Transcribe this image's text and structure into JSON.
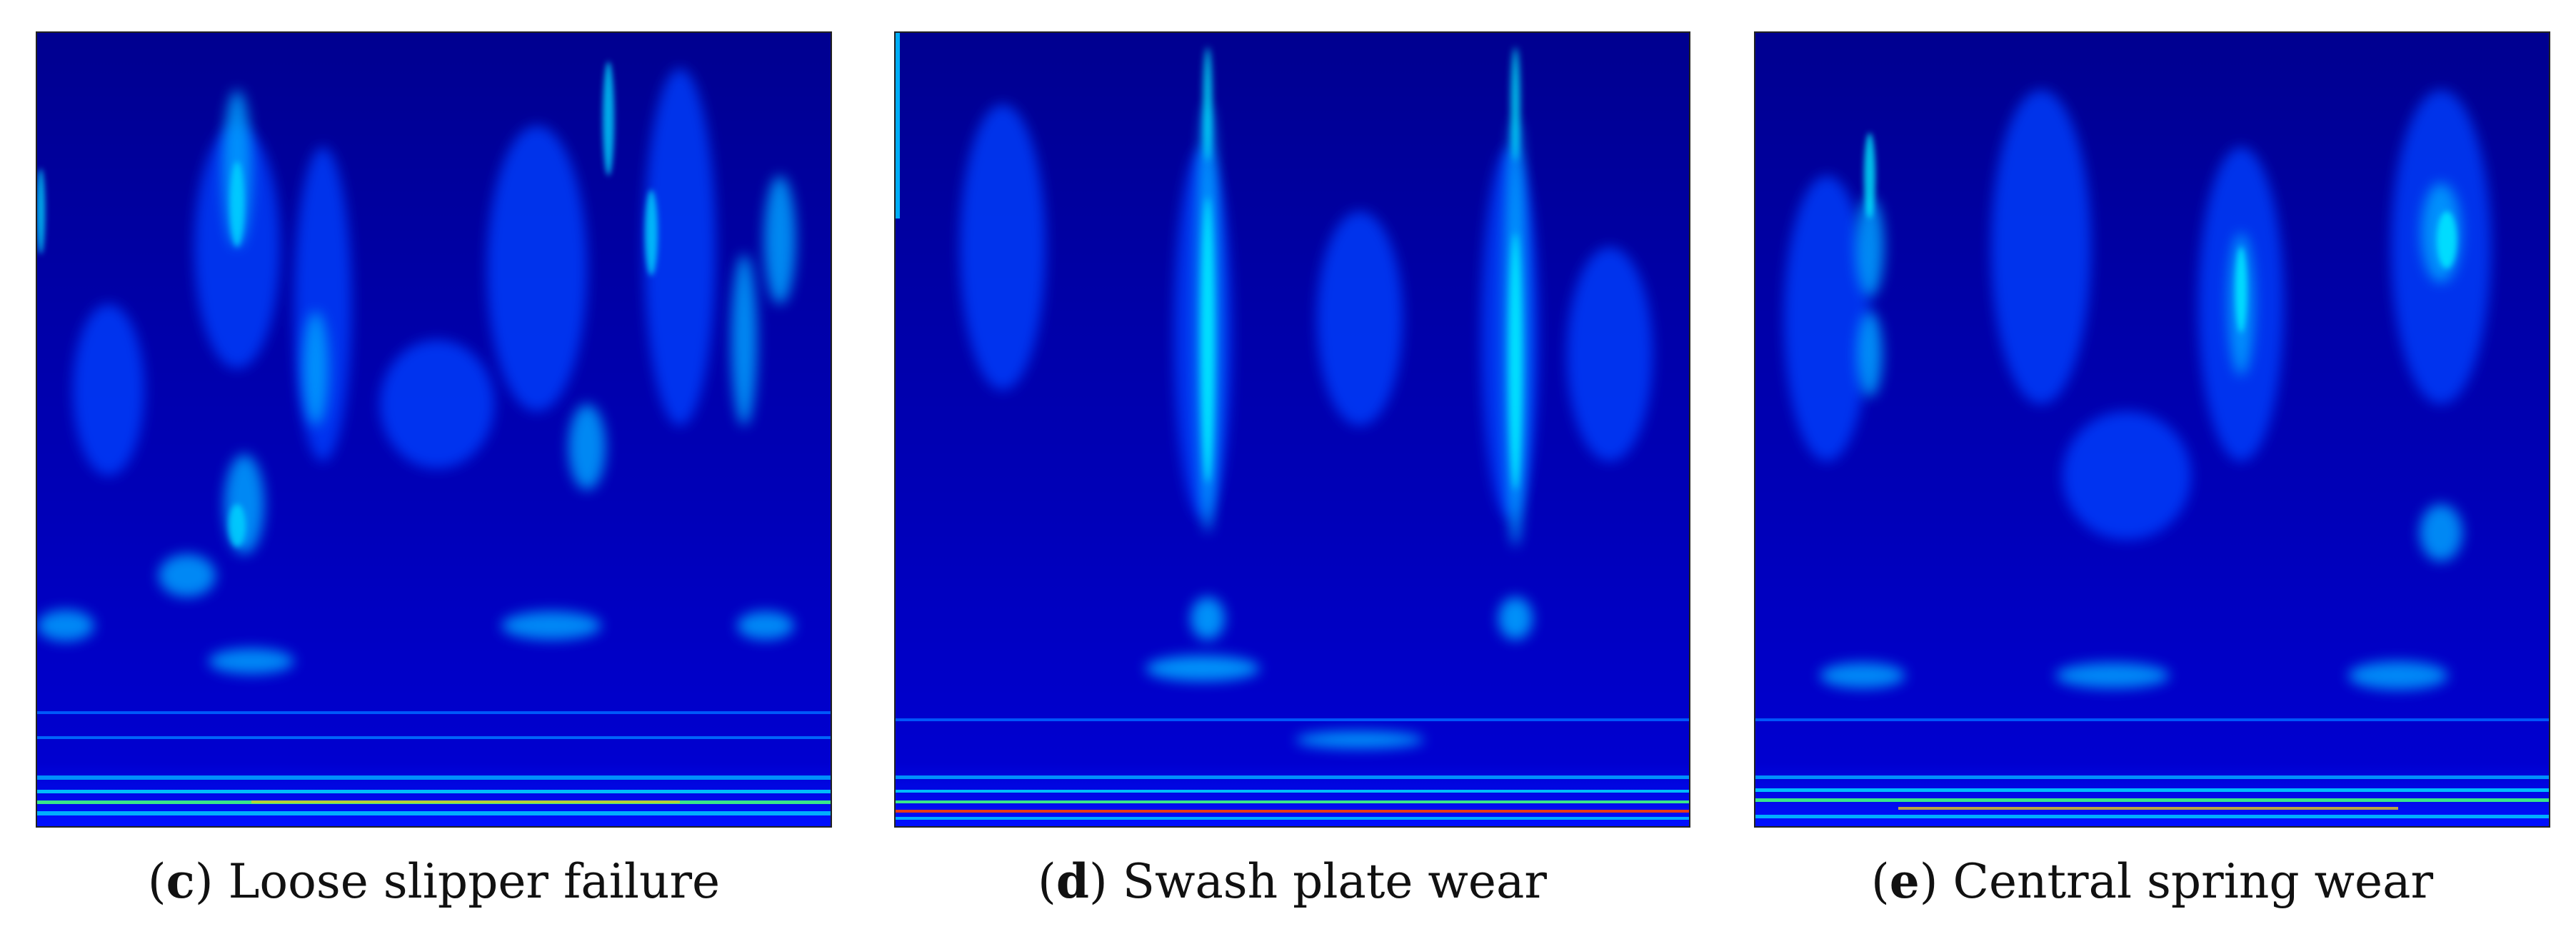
{
  "panels": [
    {
      "id": "c",
      "letter": "c",
      "title": "Loose slipper failure"
    },
    {
      "id": "d",
      "letter": "d",
      "title": "Swash plate wear"
    },
    {
      "id": "e",
      "letter": "e",
      "title": "Central spring wear"
    }
  ],
  "colormap": {
    "background": "#00007a",
    "low": "#0000ff",
    "mid": "#00b4ff",
    "high": "#00ffd0",
    "peak_yellow": "#ffff00",
    "peak_red": "#ff2000"
  }
}
